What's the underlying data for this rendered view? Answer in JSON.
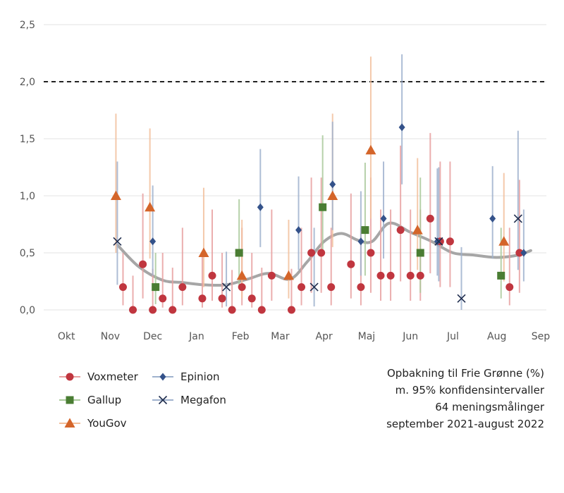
{
  "chart_data": {
    "type": "scatter",
    "title": "",
    "xlabel": "",
    "ylabel": "",
    "ylim": [
      0,
      2.5
    ],
    "yticks": [
      0,
      0.5,
      1.0,
      1.5,
      2.0,
      2.5
    ],
    "ytick_labels": [
      "0,0",
      "0,5",
      "1,0",
      "1,5",
      "2,0",
      "2,5"
    ],
    "xlim": [
      "2021-09-15",
      "2022-09-05"
    ],
    "xticks": [
      {
        "date": "2021-10-01",
        "label": "Okt"
      },
      {
        "date": "2021-11-01",
        "label": "Nov"
      },
      {
        "date": "2021-12-01",
        "label": "Dec"
      },
      {
        "date": "2022-01-01",
        "label": "Jan"
      },
      {
        "date": "2022-02-01",
        "label": "Feb"
      },
      {
        "date": "2022-03-01",
        "label": "Mar"
      },
      {
        "date": "2022-04-01",
        "label": "Apr"
      },
      {
        "date": "2022-05-01",
        "label": "Maj"
      },
      {
        "date": "2022-06-01",
        "label": "Jun"
      },
      {
        "date": "2022-07-01",
        "label": "Jul"
      },
      {
        "date": "2022-08-01",
        "label": "Aug"
      },
      {
        "date": "2022-09-01",
        "label": "Sep"
      }
    ],
    "reference_line": {
      "y": 2.0,
      "style": "dashed"
    },
    "grid": true,
    "legend_position": "bottom-left",
    "series": [
      {
        "name": "Voxmeter",
        "marker": "circle",
        "color": "#c0363f",
        "ci_color": "#e8a0a0",
        "points": [
          {
            "x": "2021-11-10",
            "y": 0.2,
            "lo": 0.04,
            "hi": 0.5
          },
          {
            "x": "2021-11-17",
            "y": 0.0,
            "lo": 0.0,
            "hi": 0.3
          },
          {
            "x": "2021-11-24",
            "y": 0.4,
            "lo": 0.1,
            "hi": 1.02
          },
          {
            "x": "2021-12-01",
            "y": 0.0,
            "lo": 0.0,
            "hi": 0.36
          },
          {
            "x": "2021-12-08",
            "y": 0.1,
            "lo": 0.02,
            "hi": 0.5
          },
          {
            "x": "2021-12-15",
            "y": 0.0,
            "lo": 0.0,
            "hi": 0.37
          },
          {
            "x": "2021-12-22",
            "y": 0.2,
            "lo": 0.04,
            "hi": 0.72
          },
          {
            "x": "2022-01-05",
            "y": 0.1,
            "lo": 0.02,
            "hi": 0.5
          },
          {
            "x": "2022-01-12",
            "y": 0.3,
            "lo": 0.08,
            "hi": 0.88
          },
          {
            "x": "2022-01-19",
            "y": 0.1,
            "lo": 0.02,
            "hi": 0.5
          },
          {
            "x": "2022-01-26",
            "y": 0.0,
            "lo": 0.0,
            "hi": 0.35
          },
          {
            "x": "2022-02-02",
            "y": 0.2,
            "lo": 0.04,
            "hi": 0.72
          },
          {
            "x": "2022-02-09",
            "y": 0.1,
            "lo": 0.02,
            "hi": 0.5
          },
          {
            "x": "2022-02-16",
            "y": 0.0,
            "lo": 0.0,
            "hi": 0.37
          },
          {
            "x": "2022-02-23",
            "y": 0.3,
            "lo": 0.08,
            "hi": 0.88
          },
          {
            "x": "2022-03-09",
            "y": 0.0,
            "lo": 0.0,
            "hi": 0.36
          },
          {
            "x": "2022-03-16",
            "y": 0.2,
            "lo": 0.04,
            "hi": 0.72
          },
          {
            "x": "2022-03-23",
            "y": 0.5,
            "lo": 0.15,
            "hi": 1.16
          },
          {
            "x": "2022-03-30",
            "y": 0.5,
            "lo": 0.15,
            "hi": 1.16
          },
          {
            "x": "2022-04-06",
            "y": 0.2,
            "lo": 0.04,
            "hi": 0.72
          },
          {
            "x": "2022-04-20",
            "y": 0.4,
            "lo": 0.1,
            "hi": 1.02
          },
          {
            "x": "2022-04-27",
            "y": 0.2,
            "lo": 0.04,
            "hi": 0.72
          },
          {
            "x": "2022-05-04",
            "y": 0.5,
            "lo": 0.15,
            "hi": 1.16
          },
          {
            "x": "2022-05-11",
            "y": 0.3,
            "lo": 0.08,
            "hi": 0.88
          },
          {
            "x": "2022-05-18",
            "y": 0.3,
            "lo": 0.08,
            "hi": 0.88
          },
          {
            "x": "2022-05-25",
            "y": 0.7,
            "lo": 0.25,
            "hi": 1.44
          },
          {
            "x": "2022-06-01",
            "y": 0.3,
            "lo": 0.08,
            "hi": 0.88
          },
          {
            "x": "2022-06-08",
            "y": 0.3,
            "lo": 0.08,
            "hi": 0.88
          },
          {
            "x": "2022-06-15",
            "y": 0.8,
            "lo": 0.32,
            "hi": 1.55
          },
          {
            "x": "2022-06-22",
            "y": 0.6,
            "lo": 0.2,
            "hi": 1.3
          },
          {
            "x": "2022-06-29",
            "y": 0.6,
            "lo": 0.2,
            "hi": 1.3
          },
          {
            "x": "2022-08-10",
            "y": 0.2,
            "lo": 0.04,
            "hi": 0.72
          },
          {
            "x": "2022-08-17",
            "y": 0.5,
            "lo": 0.15,
            "hi": 1.14
          }
        ]
      },
      {
        "name": "Gallup",
        "marker": "square",
        "color": "#4a7d33",
        "ci_color": "#a9c99a",
        "points": [
          {
            "x": "2021-12-03",
            "y": 0.2,
            "lo": 0.05,
            "hi": 0.5
          },
          {
            "x": "2022-01-31",
            "y": 0.5,
            "lo": 0.2,
            "hi": 0.97
          },
          {
            "x": "2022-03-31",
            "y": 0.9,
            "lo": 0.5,
            "hi": 1.53
          },
          {
            "x": "2022-04-30",
            "y": 0.7,
            "lo": 0.3,
            "hi": 1.29
          },
          {
            "x": "2022-06-08",
            "y": 0.5,
            "lo": 0.15,
            "hi": 1.16
          },
          {
            "x": "2022-08-04",
            "y": 0.3,
            "lo": 0.1,
            "hi": 0.72
          }
        ]
      },
      {
        "name": "YouGov",
        "marker": "triangle",
        "color": "#d4652a",
        "ci_color": "#f2bf9c",
        "points": [
          {
            "x": "2021-11-05",
            "y": 1.0,
            "lo": 0.5,
            "hi": 1.72
          },
          {
            "x": "2021-11-29",
            "y": 0.9,
            "lo": 0.45,
            "hi": 1.59
          },
          {
            "x": "2022-01-06",
            "y": 0.5,
            "lo": 0.2,
            "hi": 1.07
          },
          {
            "x": "2022-02-02",
            "y": 0.3,
            "lo": 0.1,
            "hi": 0.79
          },
          {
            "x": "2022-03-07",
            "y": 0.3,
            "lo": 0.1,
            "hi": 0.79
          },
          {
            "x": "2022-04-07",
            "y": 1.0,
            "lo": 0.55,
            "hi": 1.72
          },
          {
            "x": "2022-05-04",
            "y": 1.4,
            "lo": 0.8,
            "hi": 2.22
          },
          {
            "x": "2022-06-06",
            "y": 0.7,
            "lo": 0.35,
            "hi": 1.33
          },
          {
            "x": "2022-08-06",
            "y": 0.6,
            "lo": 0.25,
            "hi": 1.2
          }
        ]
      },
      {
        "name": "Epinion",
        "marker": "diamond",
        "color": "#34528a",
        "ci_color": "#9fb2ce",
        "points": [
          {
            "x": "2021-12-01",
            "y": 0.6,
            "lo": 0.3,
            "hi": 1.09
          },
          {
            "x": "2022-02-15",
            "y": 0.9,
            "lo": 0.55,
            "hi": 1.41
          },
          {
            "x": "2022-03-14",
            "y": 0.7,
            "lo": 0.35,
            "hi": 1.17
          },
          {
            "x": "2022-04-07",
            "y": 1.1,
            "lo": 0.7,
            "hi": 1.65
          },
          {
            "x": "2022-04-27",
            "y": 0.6,
            "lo": 0.3,
            "hi": 1.04
          },
          {
            "x": "2022-05-13",
            "y": 0.8,
            "lo": 0.45,
            "hi": 1.3
          },
          {
            "x": "2022-05-26",
            "y": 1.6,
            "lo": 1.1,
            "hi": 2.24
          },
          {
            "x": "2022-06-20",
            "y": 0.6,
            "lo": 0.3,
            "hi": 1.24
          },
          {
            "x": "2022-07-29",
            "y": 0.8,
            "lo": 0.45,
            "hi": 1.26
          },
          {
            "x": "2022-08-20",
            "y": 0.5,
            "lo": 0.25,
            "hi": 0.88
          }
        ]
      },
      {
        "name": "Megafon",
        "marker": "x",
        "color": "#1f2d4e",
        "ci_color": "#9fb2ce",
        "points": [
          {
            "x": "2021-11-06",
            "y": 0.6,
            "lo": 0.22,
            "hi": 1.3
          },
          {
            "x": "2022-01-22",
            "y": 0.2,
            "lo": 0.03,
            "hi": 0.51
          },
          {
            "x": "2022-03-25",
            "y": 0.2,
            "lo": 0.03,
            "hi": 0.72
          },
          {
            "x": "2022-06-21",
            "y": 0.6,
            "lo": 0.25,
            "hi": 1.25
          },
          {
            "x": "2022-07-07",
            "y": 0.1,
            "lo": 0.0,
            "hi": 0.55
          },
          {
            "x": "2022-08-16",
            "y": 0.8,
            "lo": 0.35,
            "hi": 1.57
          }
        ]
      }
    ],
    "trend": {
      "color": "#a6a6a6",
      "points": [
        {
          "x": "2021-11-06",
          "y": 0.57
        },
        {
          "x": "2021-11-21",
          "y": 0.38
        },
        {
          "x": "2021-12-08",
          "y": 0.26
        },
        {
          "x": "2021-12-22",
          "y": 0.24
        },
        {
          "x": "2022-01-06",
          "y": 0.22
        },
        {
          "x": "2022-01-22",
          "y": 0.22
        },
        {
          "x": "2022-02-06",
          "y": 0.27
        },
        {
          "x": "2022-02-21",
          "y": 0.32
        },
        {
          "x": "2022-03-08",
          "y": 0.27
        },
        {
          "x": "2022-03-20",
          "y": 0.42
        },
        {
          "x": "2022-04-01",
          "y": 0.6
        },
        {
          "x": "2022-04-13",
          "y": 0.67
        },
        {
          "x": "2022-04-25",
          "y": 0.61
        },
        {
          "x": "2022-05-05",
          "y": 0.6
        },
        {
          "x": "2022-05-17",
          "y": 0.76
        },
        {
          "x": "2022-06-01",
          "y": 0.68
        },
        {
          "x": "2022-06-16",
          "y": 0.6
        },
        {
          "x": "2022-07-01",
          "y": 0.5
        },
        {
          "x": "2022-07-16",
          "y": 0.48
        },
        {
          "x": "2022-08-01",
          "y": 0.46
        },
        {
          "x": "2022-08-16",
          "y": 0.48
        },
        {
          "x": "2022-08-25",
          "y": 0.52
        }
      ]
    }
  },
  "legend": {
    "items": [
      {
        "name": "Voxmeter",
        "marker": "circle",
        "color": "#c0363f",
        "ci_color": "#e8a0a0"
      },
      {
        "name": "Epinion",
        "marker": "diamond",
        "color": "#34528a",
        "ci_color": "#9fb2ce"
      },
      {
        "name": "Gallup",
        "marker": "square",
        "color": "#4a7d33",
        "ci_color": "#a9c99a"
      },
      {
        "name": "Megafon",
        "marker": "x",
        "color": "#1f2d4e",
        "ci_color": "#9fb2ce"
      },
      {
        "name": "YouGov",
        "marker": "triangle",
        "color": "#d4652a",
        "ci_color": "#f2bf9c"
      }
    ]
  },
  "caption": {
    "line1": "Opbakning til Frie Grønne (%)",
    "line2": "m. 95% konfidensintervaller",
    "line3": "64 meningsmålinger",
    "line4": "september 2021-august 2022"
  }
}
